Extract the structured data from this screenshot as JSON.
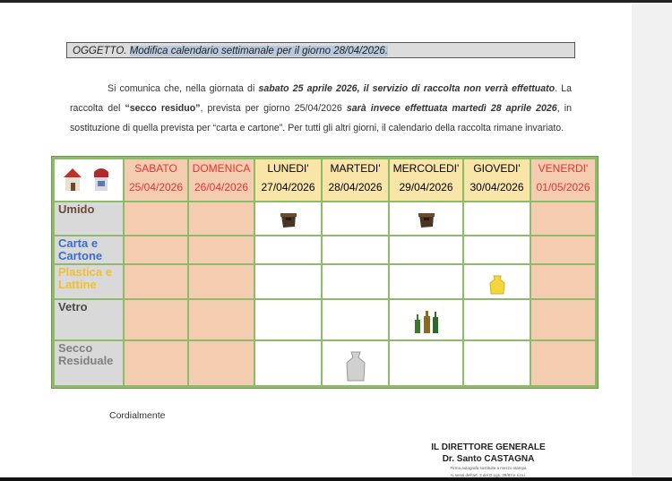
{
  "subject": {
    "prefix": "OGGETTO.",
    "text": "Modifica calendario settimanale per il giorno 28/04/2026."
  },
  "paragraph": {
    "p1": "Si comunica che, nella giornata di ",
    "b1": "sabato 25 aprile 2026, il servizio di raccolta non verrà effettuato",
    "p2": ". La raccolta del ",
    "b2": "“secco residuo”",
    "p3": ", prevista per giorno 25/04/2026 ",
    "b3": "sarà invece effettuata martedì 28 aprile 2026",
    "p4": ", in sostituzione di quella prevista per “carta e cartone”. Per tutti gli altri giorni, il calendario della raccolta rimane invariato."
  },
  "table": {
    "days": [
      {
        "name": "SABATO",
        "date": "25/04/2026",
        "type": "we"
      },
      {
        "name": "DOMENICA",
        "date": "26/04/2026",
        "type": "we"
      },
      {
        "name": "LUNEDI'",
        "date": "27/04/2026",
        "type": "wd"
      },
      {
        "name": "MARTEDI'",
        "date": "28/04/2026",
        "type": "wd"
      },
      {
        "name": "MERCOLEDI'",
        "date": "29/04/2026",
        "type": "wd"
      },
      {
        "name": "GIOVEDI'",
        "date": "30/04/2026",
        "type": "wd"
      },
      {
        "name": "VENERDI'",
        "date": "01/05/2026",
        "type": "we"
      }
    ],
    "rows": [
      {
        "label": "Umido",
        "color": "#6b4a3a",
        "icons": {
          "2": "organic-bin",
          "4": "organic-bin"
        }
      },
      {
        "label": "Carta e Cartone",
        "color": "#3b6ec8",
        "icons": {}
      },
      {
        "label": "Plastica e Lattine",
        "color": "#f0c030",
        "icons": {
          "5": "yellow-bag"
        }
      },
      {
        "label": "Vetro",
        "color": "#4a4a4a",
        "icons": {
          "4": "glass-bottles"
        }
      },
      {
        "label": "Secco Residuale",
        "color": "#808080",
        "icons": {
          "3": "grey-bag"
        }
      }
    ]
  },
  "closing": "Cordialmente",
  "signature": {
    "title": "IL DIRETTORE GENERALE",
    "name": "Dr. Santo CASTAGNA",
    "note1": "Firma autografa sostituita a mezzo stampa",
    "note2": "Ai sensi dell'art. 3 del D.Lgs. 39/93 e s.m.i."
  }
}
